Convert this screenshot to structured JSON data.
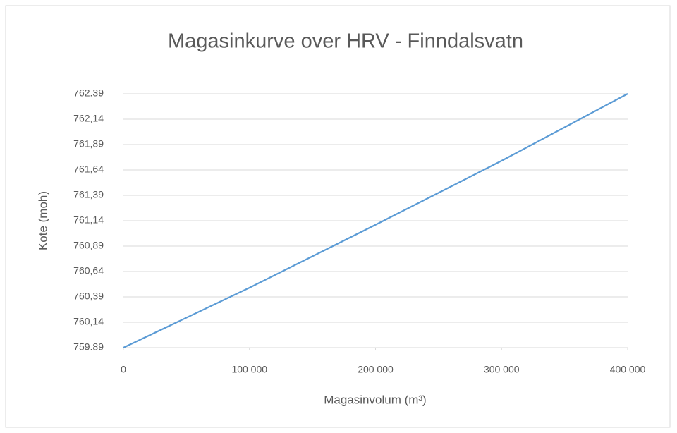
{
  "chart_data": {
    "type": "line",
    "title": "Magasinkurve over HRV -  Finndalsvatn",
    "x_label": "Magasinvolum (m³)",
    "y_label": "Kote (moh)",
    "x": [
      0,
      100000,
      200000,
      300000,
      400000
    ],
    "series": [
      {
        "name": "Magasinkurve",
        "color": "#5b9bd5",
        "values": [
          759.89,
          760.48,
          761.1,
          761.73,
          762.39
        ]
      }
    ],
    "xlim": [
      0,
      400000
    ],
    "xticks": [
      0,
      {
        "value": 100000,
        "label": "100 000"
      },
      {
        "value": 200000,
        "label": "200 000"
      },
      {
        "value": 300000,
        "label": "300 000"
      },
      {
        "value": 400000,
        "label": "400 000"
      }
    ],
    "ylim": [
      759.89,
      762.39
    ],
    "yticks": [
      759.89,
      {
        "value": 760.14,
        "label": "760,14"
      },
      {
        "value": 760.39,
        "label": "760,39"
      },
      {
        "value": 760.64,
        "label": "760,64"
      },
      {
        "value": 760.89,
        "label": "760,89"
      },
      {
        "value": 761.14,
        "label": "761,14"
      },
      {
        "value": 761.39,
        "label": "761,39"
      },
      {
        "value": 761.64,
        "label": "761,64"
      },
      {
        "value": 761.89,
        "label": "761,89"
      },
      {
        "value": 762.14,
        "label": "762,14"
      },
      762.39
    ],
    "grid": true
  }
}
